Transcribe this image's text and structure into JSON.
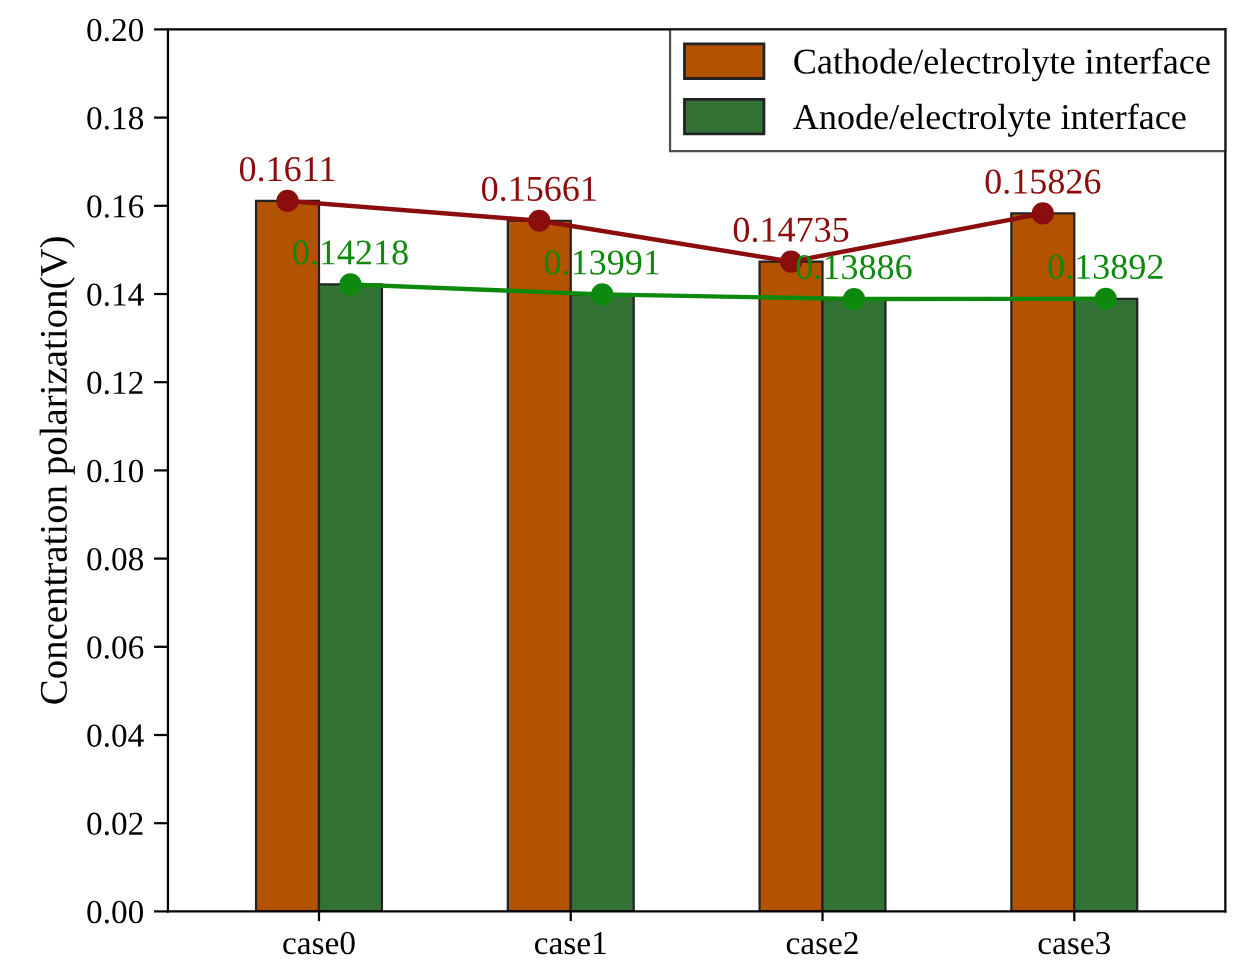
{
  "chart_data": {
    "type": "bar",
    "ylabel": "Concentration polarization(V)",
    "categories": [
      "case0",
      "case1",
      "case2",
      "case3"
    ],
    "series": [
      {
        "name": "Cathode/electrolyte interface",
        "color": "#b35200",
        "values": [
          0.1611,
          0.15661,
          0.14735,
          0.15826
        ]
      },
      {
        "name": "Anode/electrolyte interface",
        "color": "#327335",
        "values": [
          0.14218,
          0.13991,
          0.13886,
          0.13892
        ]
      },
      {
        "type": "line",
        "color": "#8b0d0d",
        "marker": "circle",
        "values": [
          0.1611,
          0.15661,
          0.14735,
          0.15826
        ],
        "value_labels": [
          "0.1611",
          "0.15661",
          "0.14735",
          "0.15826"
        ]
      },
      {
        "type": "line",
        "color": "#0d8a0d",
        "marker": "circle",
        "values": [
          0.14218,
          0.13991,
          0.13886,
          0.13892
        ],
        "value_labels": [
          "0.14218",
          "0.13991",
          "0.13886",
          "0.13892"
        ]
      }
    ],
    "ylim": [
      0,
      0.2
    ],
    "yticks": [
      {
        "value": 0,
        "label": "0.00"
      },
      {
        "value": 0.02,
        "label": "0.02"
      },
      {
        "value": 0.04,
        "label": "0.04"
      },
      {
        "value": 0.06,
        "label": "0.06"
      },
      {
        "value": 0.08,
        "label": "0.08"
      },
      {
        "value": 0.1,
        "label": "0.10"
      },
      {
        "value": 0.12,
        "label": "0.12"
      },
      {
        "value": 0.14,
        "label": "0.14"
      },
      {
        "value": 0.16,
        "label": "0.16"
      },
      {
        "value": 0.18,
        "label": "0.18"
      },
      {
        "value": 0.2,
        "label": "0.20"
      }
    ],
    "grid": false,
    "legend": "top right"
  }
}
